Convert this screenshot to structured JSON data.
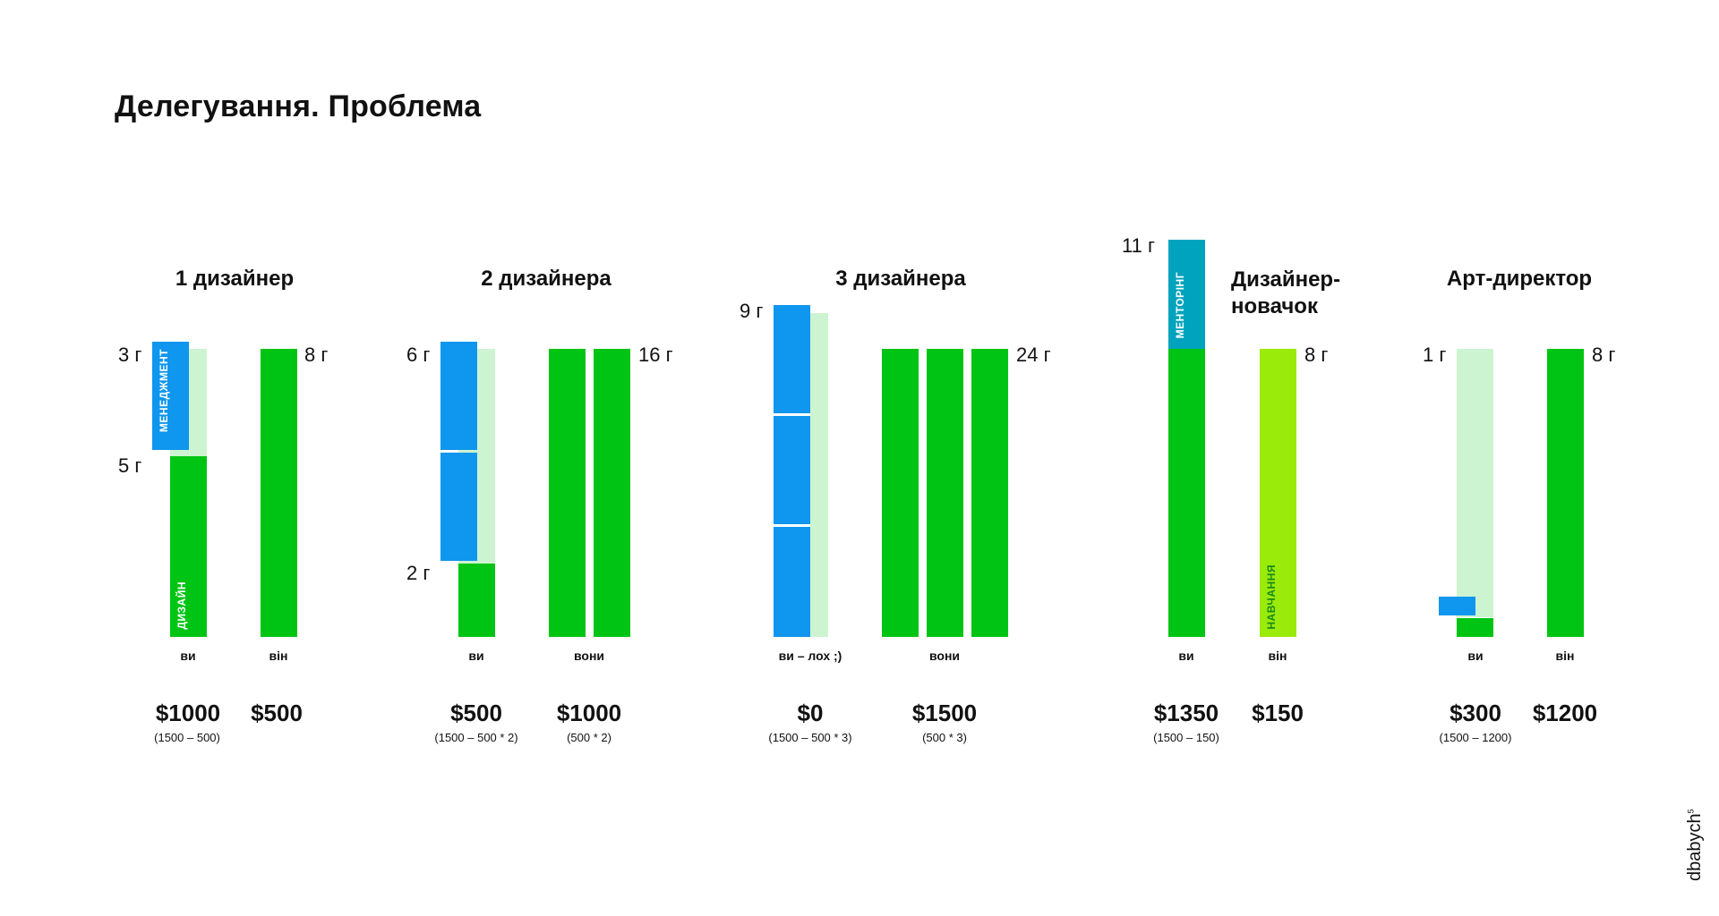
{
  "title": "Делегування. Проблема",
  "colors": {
    "design": "#00c414",
    "management": "#0f96ee",
    "light": "#ccf4d0",
    "mentoring": "#00a3bd",
    "learning": "#9aea0a"
  },
  "scenarios": [
    {
      "heading": "1 дизайнер",
      "hours": [
        "3 г",
        "5 г",
        "8 г"
      ],
      "bar_labels": [
        "МЕНЕДЖМЕНТ",
        "ДИЗАЙН"
      ],
      "people": [
        "ви",
        "він"
      ],
      "money": [
        "$1000",
        "$500"
      ],
      "formulas": [
        "(1500 – 500)"
      ]
    },
    {
      "heading": "2 дизайнера",
      "hours": [
        "6 г",
        "2 г",
        "16 г"
      ],
      "people": [
        "ви",
        "вони"
      ],
      "money": [
        "$500",
        "$1000"
      ],
      "formulas": [
        "(1500 – 500 * 2)",
        "(500 * 2)"
      ]
    },
    {
      "heading": "3 дизайнера",
      "hours": [
        "9 г",
        "24 г"
      ],
      "people": [
        "ви – лох ;)",
        "вони"
      ],
      "money": [
        "$0",
        "$1500"
      ],
      "formulas": [
        "(1500 – 500 * 3)",
        "(500 * 3)"
      ]
    },
    {
      "heading": "Дизайнер-новачок",
      "hours": [
        "11 г",
        "8 г"
      ],
      "bar_labels": [
        "МЕНТОРІНГ",
        "НАВЧАННЯ"
      ],
      "people": [
        "ви",
        "він"
      ],
      "money": [
        "$1350",
        "$150"
      ],
      "formulas": [
        "(1500 – 150)"
      ]
    },
    {
      "heading": "Арт-директор",
      "hours": [
        "1 г",
        "8 г"
      ],
      "people": [
        "ви",
        "він"
      ],
      "money": [
        "$300",
        "$1200"
      ],
      "formulas": [
        "(1500 – 1200)"
      ]
    }
  ],
  "logo": "dbabych",
  "logo_mark": "5"
}
